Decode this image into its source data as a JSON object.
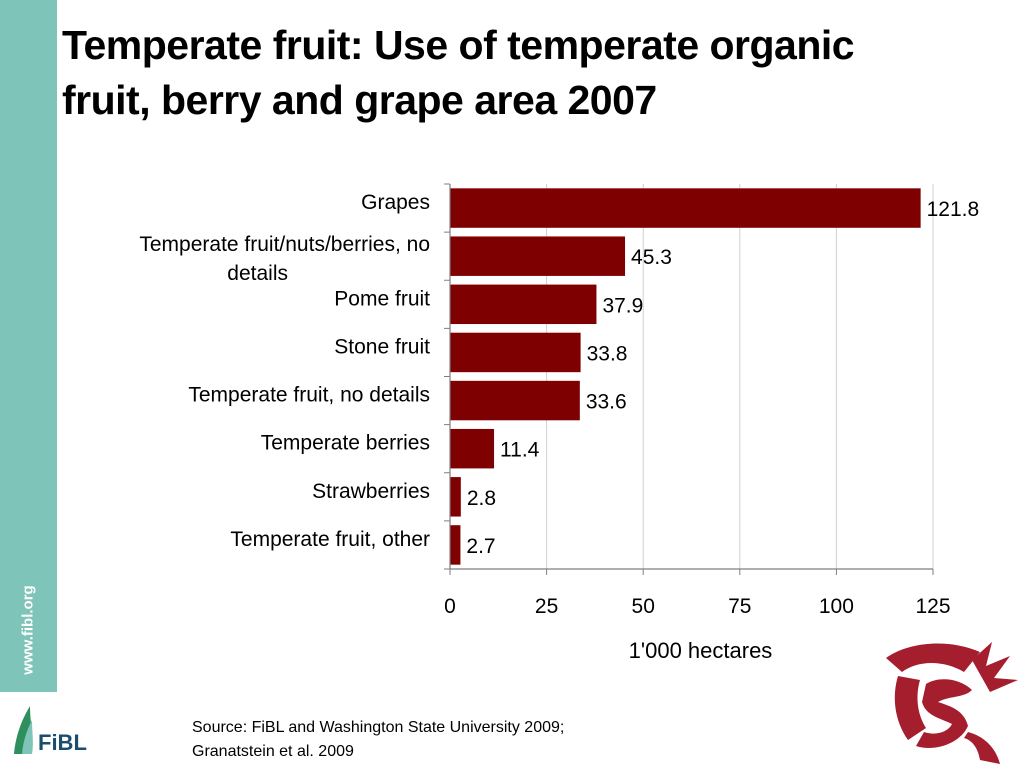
{
  "side_url": "www.fibl.org",
  "title_line1": "Temperate fruit: Use of temperate organic",
  "title_line2": "fruit, berry and grape area 2007",
  "source_line1": "Source: FiBL  and Washington State University 2009;",
  "source_line2": "Granatstein et al. 2009",
  "fibl_logo_text": "FiBL",
  "colors": {
    "bar": "#7f0000",
    "sidebar": "#7fc4b8",
    "wsu": "#a51e2e"
  },
  "chart_data": {
    "type": "bar",
    "orientation": "horizontal",
    "categories": [
      [
        "Grapes"
      ],
      [
        "Temperate fruit/nuts/berries, no",
        "details"
      ],
      [
        "Pome fruit"
      ],
      [
        "Stone fruit"
      ],
      [
        "Temperate fruit, no details"
      ],
      [
        "Temperate berries"
      ],
      [
        "Strawberries"
      ],
      [
        "Temperate fruit, other"
      ]
    ],
    "values": [
      121.8,
      45.3,
      37.9,
      33.8,
      33.6,
      11.4,
      2.8,
      2.7
    ],
    "value_labels": [
      "121.8",
      "45.3",
      "37.9",
      "33.8",
      "33.6",
      "11.4",
      "2.8",
      "2.7"
    ],
    "xlabel": "1'000 hectares",
    "xlim": [
      0,
      125
    ],
    "xticks": [
      0,
      25,
      50,
      75,
      100,
      125
    ],
    "grid": "vertical"
  }
}
